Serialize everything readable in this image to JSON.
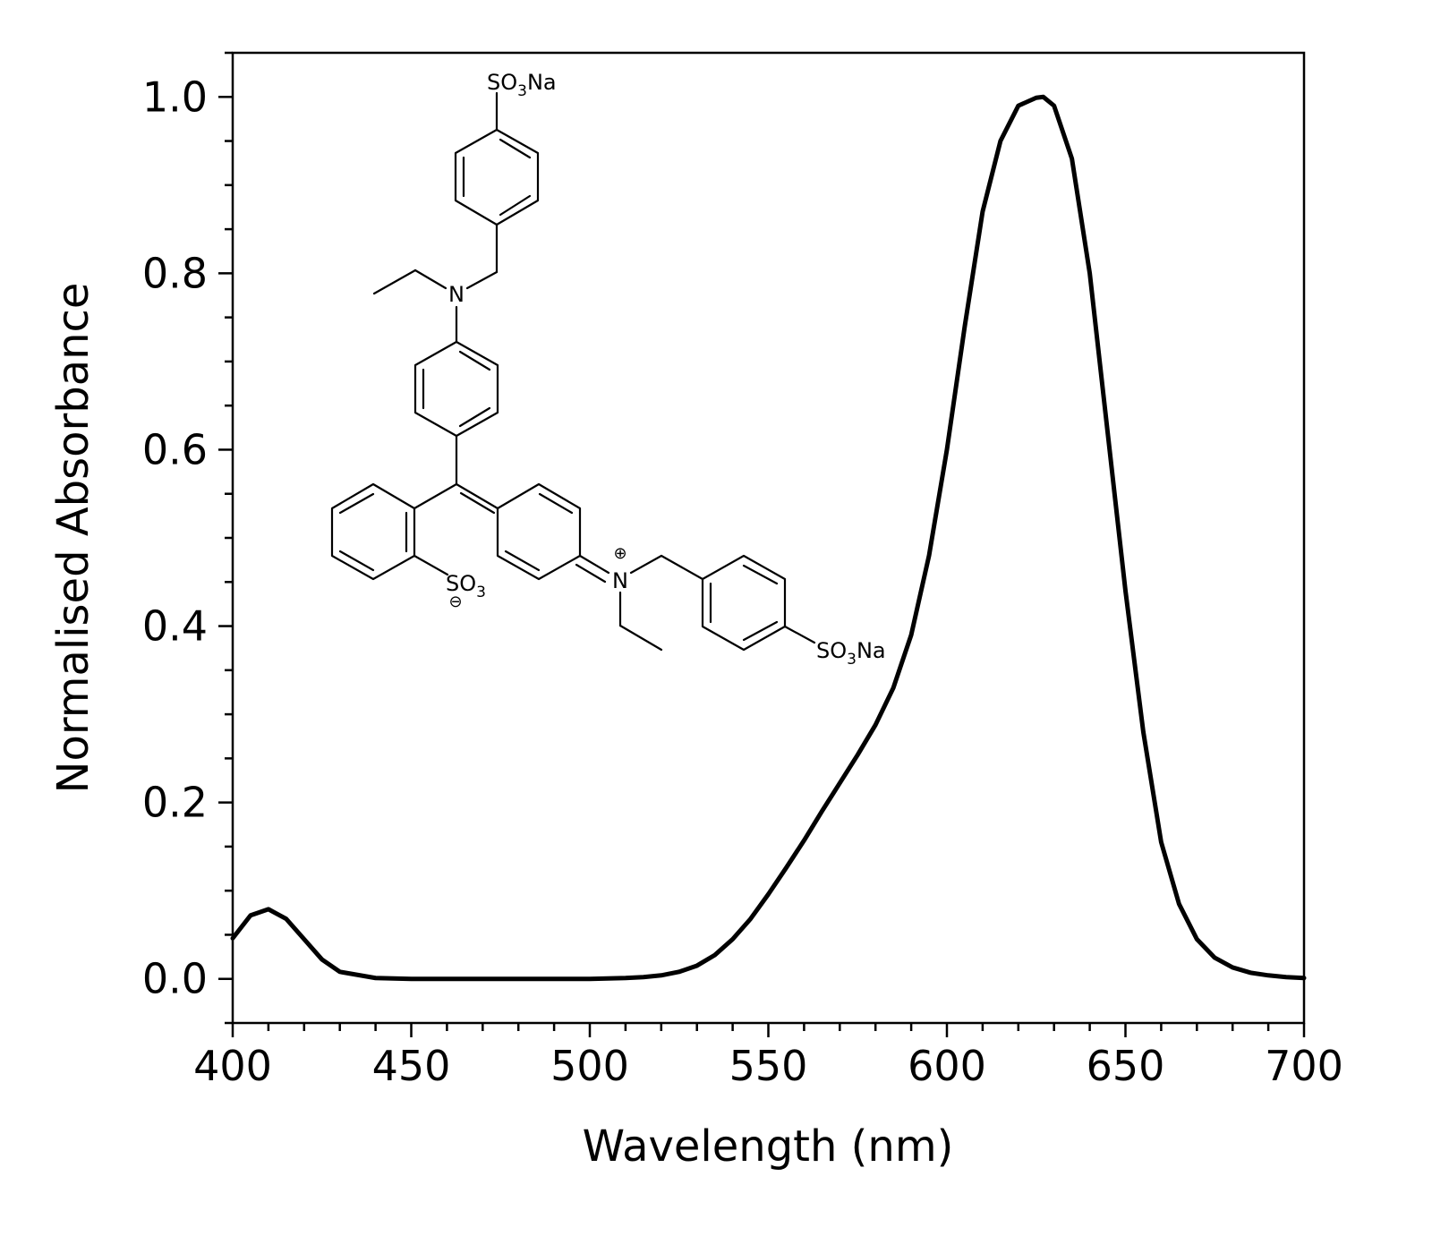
{
  "chart_data": {
    "type": "line",
    "xlabel": "Wavelength (nm)",
    "ylabel": "Normalised Absorbance",
    "xlim": [
      400,
      700
    ],
    "ylim": [
      -0.05,
      1.05
    ],
    "x_ticks": [
      400,
      450,
      500,
      550,
      600,
      650,
      700
    ],
    "x_tick_labels": [
      "400",
      "450",
      "500",
      "550",
      "600",
      "650",
      "700"
    ],
    "y_ticks": [
      0.0,
      0.2,
      0.4,
      0.6,
      0.8,
      1.0
    ],
    "y_tick_labels": [
      "0.0",
      "0.2",
      "0.4",
      "0.6",
      "0.8",
      "1.0"
    ],
    "grid": false,
    "line_color": "#000000",
    "series": [
      {
        "x": [
          400,
          405,
          410,
          415,
          420,
          425,
          430,
          440,
          450,
          460,
          470,
          480,
          490,
          500,
          510,
          515,
          520,
          525,
          530,
          535,
          540,
          545,
          550,
          555,
          560,
          565,
          570,
          575,
          580,
          585,
          590,
          595,
          600,
          605,
          610,
          615,
          620,
          625,
          627,
          630,
          635,
          640,
          645,
          650,
          655,
          660,
          665,
          670,
          675,
          680,
          685,
          690,
          695,
          700
        ],
        "y": [
          0.046,
          0.072,
          0.079,
          0.068,
          0.045,
          0.022,
          0.008,
          0.001,
          0.0,
          0.0,
          0.0,
          0.0,
          0.0,
          0.0,
          0.001,
          0.002,
          0.004,
          0.008,
          0.015,
          0.027,
          0.045,
          0.068,
          0.096,
          0.126,
          0.157,
          0.19,
          0.222,
          0.254,
          0.288,
          0.33,
          0.39,
          0.48,
          0.6,
          0.74,
          0.87,
          0.95,
          0.99,
          0.999,
          1.0,
          0.99,
          0.93,
          0.8,
          0.62,
          0.44,
          0.28,
          0.155,
          0.085,
          0.045,
          0.024,
          0.013,
          0.007,
          0.004,
          0.002,
          0.001
        ]
      }
    ]
  },
  "structure": {
    "label_so3na_top": "SO3Na",
    "label_so3na_right": "SO3Na",
    "label_so3": "SO3",
    "label_n_top": "N",
    "label_n_cation": "N",
    "charge_plus": "⊕",
    "charge_minus": "⊖"
  }
}
